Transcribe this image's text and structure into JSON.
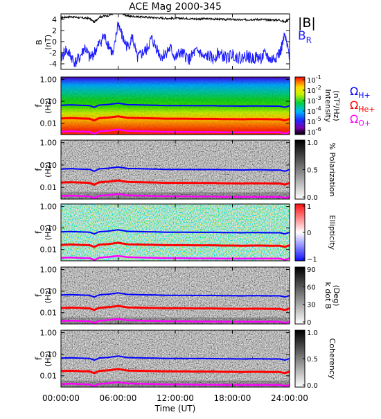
{
  "title": "ACE Mag 2000-345",
  "x_axis": {
    "label": "Time (UT)",
    "range_hours": [
      0,
      24
    ],
    "ticks": [
      {
        "hour": 0,
        "label": "00:00:00"
      },
      {
        "hour": 6,
        "label": "06:00:00"
      },
      {
        "hour": 12,
        "label": "12:00:00"
      },
      {
        "hour": 18,
        "label": "18:00:00"
      },
      {
        "hour": 24,
        "label": "24:00:00"
      }
    ]
  },
  "colors": {
    "B_total": "#000000",
    "B_R": "#1f1fff",
    "gyro_H": "#0000ff",
    "gyro_He": "#ff0000",
    "gyro_O": "#ff00ff"
  },
  "gyro_labels": {
    "H": {
      "symbol": "Ω",
      "sub": "H+"
    },
    "He": {
      "symbol": "Ω",
      "sub": "He+"
    },
    "O": {
      "symbol": "Ω",
      "sub": "O+"
    }
  },
  "field_legend": {
    "total": "|B|",
    "radial_symbol": "B",
    "radial_sub": "R"
  },
  "spectrogram_y_axis": {
    "ylabel_1": "f",
    "ylabel_2": "(Hz)",
    "scale": "log",
    "range": [
      0.003,
      1.3
    ],
    "ticks": [
      "1.00",
      "0.10",
      "0.01"
    ]
  },
  "chart_data": [
    {
      "type": "line",
      "panel": "magnetic field",
      "ylabel_1": "B",
      "ylabel_2": "(nT)",
      "ylim": [
        -5,
        5
      ],
      "yticks": [
        4,
        2,
        0,
        -2,
        -4
      ],
      "series": [
        {
          "name": "|B|",
          "x": [
            0,
            1,
            2,
            3,
            3.5,
            4,
            4.5,
            5,
            6,
            7,
            8,
            9,
            10,
            11,
            12,
            13,
            14,
            15,
            16,
            17,
            18,
            19,
            20,
            21,
            22,
            23,
            23.5,
            24
          ],
          "y": [
            4.3,
            4.5,
            4.3,
            4.2,
            3.5,
            4.4,
            4.6,
            4.7,
            5.4,
            4.6,
            4.5,
            4.4,
            4.3,
            4.2,
            4.2,
            4.2,
            4.1,
            4.1,
            4.1,
            4.0,
            4.0,
            3.9,
            4.0,
            4.0,
            3.9,
            3.9,
            3.5,
            4.1
          ]
        },
        {
          "name": "B_R",
          "x": [
            0,
            0.5,
            1,
            1.5,
            2,
            2.5,
            3,
            3.5,
            4,
            4.5,
            5,
            5.5,
            6,
            6.5,
            7,
            7.5,
            8,
            8.5,
            9,
            9.5,
            10,
            10.5,
            11,
            11.5,
            12,
            12.5,
            13,
            13.5,
            14,
            14.5,
            15,
            15.5,
            16,
            16.5,
            17,
            17.5,
            18,
            18.5,
            19,
            19.5,
            20,
            20.5,
            21,
            21.5,
            22,
            22.5,
            23,
            23.5,
            24
          ],
          "y": [
            -3.0,
            -1.5,
            -2.5,
            -3.8,
            -2.8,
            -1.0,
            -3.0,
            -2.0,
            -0.5,
            1.0,
            -0.5,
            -2.5,
            3.5,
            0.5,
            -1.0,
            0.8,
            -3.0,
            -2.2,
            -1.5,
            0.5,
            -1.0,
            -2.8,
            -2.0,
            -1.2,
            -3.0,
            -2.0,
            -2.5,
            -3.2,
            -2.0,
            -1.8,
            -3.0,
            -2.5,
            -3.2,
            -2.0,
            -2.6,
            -3.0,
            -2.2,
            -2.8,
            -3.0,
            -2.4,
            -3.2,
            -2.8,
            -3.0,
            -2.2,
            -3.4,
            -2.8,
            -2.0,
            1.0,
            -2.8
          ]
        }
      ]
    },
    {
      "type": "heatmap",
      "panel": "intensity",
      "colorbar": {
        "label_1": "Intensity",
        "label_2": "(nT²/Hz)",
        "scale": "log",
        "range": [
          1e-06,
          0.1
        ],
        "ticks": [
          {
            "mant": "10",
            "exp": "-1",
            "value": 0.1
          },
          {
            "mant": "10",
            "exp": "-2",
            "value": 0.01
          },
          {
            "mant": "10",
            "exp": "-3",
            "value": 0.001
          },
          {
            "mant": "10",
            "exp": "-4",
            "value": 0.0001
          },
          {
            "mant": "10",
            "exp": "-5",
            "value": 1e-05
          },
          {
            "mant": "10",
            "exp": "-6",
            "value": 1e-06
          }
        ]
      }
    },
    {
      "type": "heatmap",
      "panel": "polarization",
      "colorbar": {
        "label_1": "% Polarization",
        "label_2": "",
        "range": [
          0,
          1
        ],
        "ticks": [
          "1.0",
          "0.5",
          "0.0"
        ]
      }
    },
    {
      "type": "heatmap",
      "panel": "ellipticity",
      "colorbar": {
        "label_1": "Ellipticity",
        "label_2": "",
        "range": [
          -1,
          1
        ],
        "ticks": [
          "1",
          "0",
          "−1"
        ]
      }
    },
    {
      "type": "heatmap",
      "panel": "k dot B",
      "colorbar": {
        "label_1": "k dot B",
        "label_2": "(Deg)",
        "range": [
          0,
          90
        ],
        "ticks": [
          "90",
          "60",
          "30",
          "0"
        ]
      }
    },
    {
      "type": "heatmap",
      "panel": "coherency",
      "colorbar": {
        "label_1": "Coherency",
        "label_2": "",
        "range": [
          0,
          1
        ],
        "ticks": [
          "1.0",
          "0.5",
          "0.0"
        ]
      }
    }
  ],
  "gyrofrequency_hz": {
    "x": [
      0,
      1,
      2,
      3,
      3.5,
      4,
      5,
      6,
      7,
      8,
      9,
      10,
      11,
      12,
      13,
      14,
      15,
      16,
      17,
      18,
      19,
      20,
      21,
      22,
      23,
      23.5,
      24
    ],
    "H": [
      0.066,
      0.069,
      0.066,
      0.064,
      0.053,
      0.067,
      0.072,
      0.082,
      0.07,
      0.069,
      0.067,
      0.066,
      0.064,
      0.064,
      0.064,
      0.063,
      0.063,
      0.063,
      0.061,
      0.061,
      0.06,
      0.061,
      0.061,
      0.06,
      0.06,
      0.053,
      0.063
    ],
    "He": [
      0.0165,
      0.0172,
      0.0165,
      0.016,
      0.0133,
      0.0168,
      0.018,
      0.0205,
      0.0175,
      0.0172,
      0.0168,
      0.0165,
      0.016,
      0.016,
      0.016,
      0.0157,
      0.0157,
      0.0157,
      0.0153,
      0.0153,
      0.015,
      0.0153,
      0.0153,
      0.015,
      0.015,
      0.0133,
      0.0157
    ],
    "O": [
      0.0041,
      0.0043,
      0.0041,
      0.004,
      0.0033,
      0.0042,
      0.0045,
      0.0051,
      0.0044,
      0.0043,
      0.0042,
      0.0041,
      0.004,
      0.004,
      0.004,
      0.0039,
      0.0039,
      0.0039,
      0.0038,
      0.0038,
      0.0038,
      0.0038,
      0.0038,
      0.0038,
      0.0038,
      0.0033,
      0.0039
    ]
  }
}
